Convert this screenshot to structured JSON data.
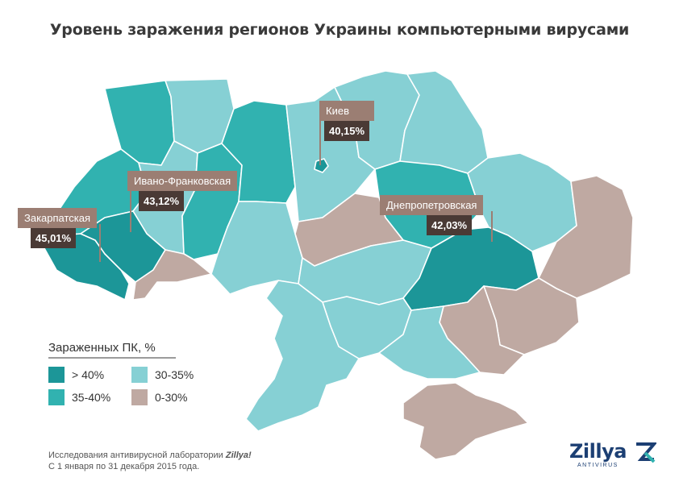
{
  "title": "Уровень заражения регионов Украины компьютерными вирусами",
  "colors": {
    "gt40": "#1c9698",
    "r35_40": "#31b2b0",
    "r30_35": "#86d0d4",
    "r0_30": "#bfa9a2",
    "callout_name_bg": "#9b7e73",
    "callout_pct_bg": "#4a3a35",
    "border": "#ffffff"
  },
  "callouts": [
    {
      "name": "Киев",
      "value": "40,15%"
    },
    {
      "name": "Ивано-Франковская",
      "value": "43,12%"
    },
    {
      "name": "Закарпатская",
      "value": "45,01%"
    },
    {
      "name": "Днепропетровская",
      "value": "42,03%"
    }
  ],
  "legend": {
    "title": "Зараженных ПК, %",
    "items": [
      {
        "label": "> 40%",
        "color": "#1c9698"
      },
      {
        "label": "35-40%",
        "color": "#31b2b0"
      },
      {
        "label": "30-35%",
        "color": "#86d0d4"
      },
      {
        "label": "0-30%",
        "color": "#bfa9a2"
      }
    ]
  },
  "footer": {
    "line1_prefix": "Исследования антивирусной лаборатории ",
    "line1_brand": "Zillya!",
    "line2": "С 1 января по 31 декабря 2015 года."
  },
  "logo": {
    "name": "Zillya",
    "sub": "ANTIVIRUS"
  }
}
